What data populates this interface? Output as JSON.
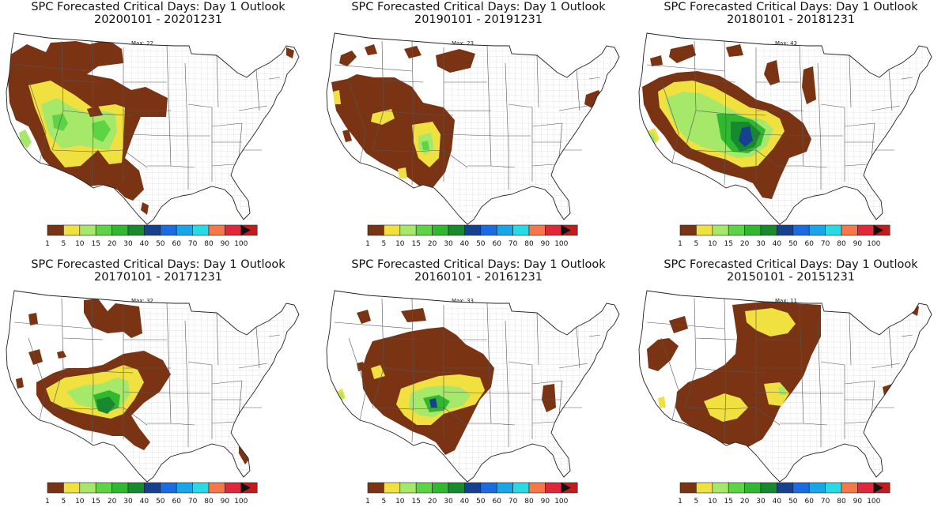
{
  "colorbar": {
    "levels": [
      "1",
      "5",
      "10",
      "15",
      "20",
      "30",
      "40",
      "50",
      "60",
      "70",
      "80",
      "90",
      "100"
    ],
    "colors": [
      "#7a3414",
      "#f0e040",
      "#a6e86a",
      "#5dd446",
      "#2fb830",
      "#178a2e",
      "#16418e",
      "#1a6ce0",
      "#18a6e8",
      "#28dae2",
      "#f4784a",
      "#e0283a",
      "#c01c1c",
      "#6e0e0e"
    ]
  },
  "map_colors": {
    "states_line": "#555555",
    "counties_line": "#bbbbbb",
    "land": "#ffffff"
  },
  "panels": [
    {
      "title": "SPC Forecasted Critical Days: Day 1 Outlook",
      "period": "20200101 - 20201231",
      "max_label": "Max: 22",
      "max_days": 22
    },
    {
      "title": "SPC Forecasted Critical Days: Day 1 Outlook",
      "period": "20190101 - 20191231",
      "max_label": "Max: 23",
      "max_days": 23
    },
    {
      "title": "SPC Forecasted Critical Days: Day 1 Outlook",
      "period": "20180101 - 20181231",
      "max_label": "Max: 43",
      "max_days": 43
    },
    {
      "title": "SPC Forecasted Critical Days: Day 1 Outlook",
      "period": "20170101 - 20171231",
      "max_label": "Max: 32",
      "max_days": 32
    },
    {
      "title": "SPC Forecasted Critical Days: Day 1 Outlook",
      "period": "20160101 - 20161231",
      "max_label": "Max: 33",
      "max_days": 33
    },
    {
      "title": "SPC Forecasted Critical Days: Day 1 Outlook",
      "period": "20150101 - 20151231",
      "max_label": "Max: 11",
      "max_days": 11
    }
  ]
}
